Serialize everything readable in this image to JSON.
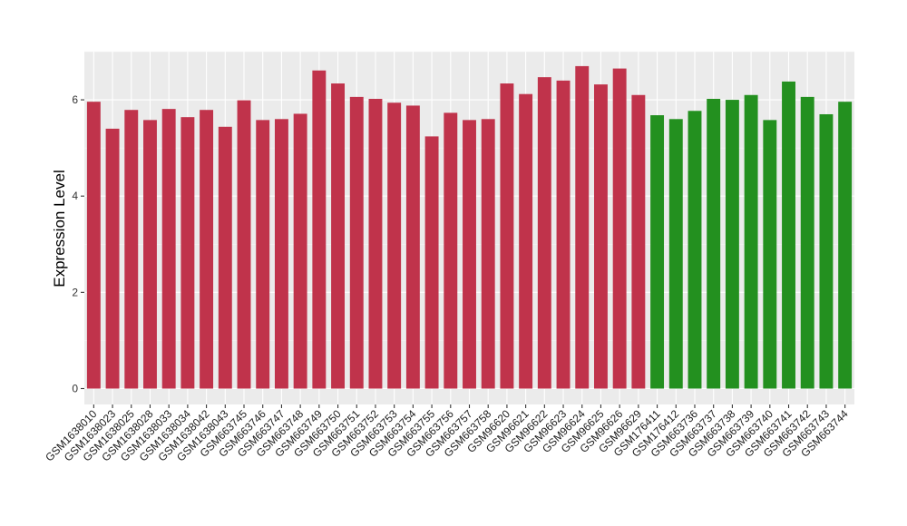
{
  "chart_data": {
    "type": "bar",
    "title": "",
    "xlabel": "",
    "ylabel": "Expression Level",
    "ylim": [
      0,
      7
    ],
    "yticks": [
      0,
      2,
      4,
      6
    ],
    "grid": true,
    "categories": [
      "GSM1638010",
      "GSM1638023",
      "GSM1638025",
      "GSM1638028",
      "GSM1638033",
      "GSM1638034",
      "GSM1638042",
      "GSM1638043",
      "GSM663745",
      "GSM663746",
      "GSM663747",
      "GSM663748",
      "GSM663749",
      "GSM663750",
      "GSM663751",
      "GSM663752",
      "GSM663753",
      "GSM663754",
      "GSM663755",
      "GSM663756",
      "GSM663757",
      "GSM663758",
      "GSM96620",
      "GSM96621",
      "GSM96622",
      "GSM96623",
      "GSM96624",
      "GSM96625",
      "GSM96626",
      "GSM96629",
      "GSM176411",
      "GSM176412",
      "GSM663736",
      "GSM663737",
      "GSM663738",
      "GSM663739",
      "GSM663740",
      "GSM663741",
      "GSM663742",
      "GSM663743",
      "GSM663744"
    ],
    "values": [
      5.96,
      5.4,
      5.79,
      5.58,
      5.81,
      5.64,
      5.79,
      5.44,
      5.99,
      5.58,
      5.6,
      5.71,
      6.61,
      6.34,
      6.06,
      6.02,
      5.94,
      5.88,
      5.24,
      5.73,
      5.58,
      5.6,
      6.34,
      6.12,
      6.47,
      6.4,
      6.7,
      6.32,
      6.65,
      6.1,
      5.68,
      5.6,
      5.77,
      6.02,
      6.0,
      6.1,
      5.58,
      6.38,
      6.06,
      5.7,
      5.96
    ],
    "groups": [
      "red",
      "red",
      "red",
      "red",
      "red",
      "red",
      "red",
      "red",
      "red",
      "red",
      "red",
      "red",
      "red",
      "red",
      "red",
      "red",
      "red",
      "red",
      "red",
      "red",
      "red",
      "red",
      "red",
      "red",
      "red",
      "red",
      "red",
      "red",
      "red",
      "red",
      "green",
      "green",
      "green",
      "green",
      "green",
      "green",
      "green",
      "green",
      "green",
      "green",
      "green"
    ],
    "colors": {
      "red": "#C0334B",
      "green": "#23901F",
      "panel": "#EBEBEB",
      "grid_major": "#FFFFFF",
      "grid_minor": "#F5F5F5"
    }
  }
}
